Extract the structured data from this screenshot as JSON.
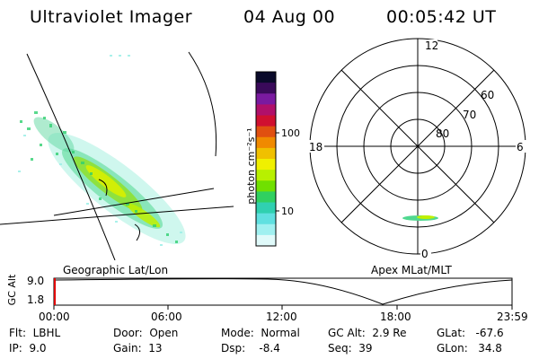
{
  "header": {
    "title": "Ultraviolet Imager",
    "date": "04 Aug 00",
    "time": "00:05:42 UT"
  },
  "left_panel": {
    "caption": "Geographic Lat/Lon"
  },
  "colorbar": {
    "unit_label": "photon cm⁻²s⁻¹",
    "ticks": [
      "100",
      "10"
    ],
    "colors": [
      "#0a0a2a",
      "#3a0a5a",
      "#7a1aa0",
      "#b0106a",
      "#d01030",
      "#e05010",
      "#f08a00",
      "#f0c000",
      "#f0f000",
      "#b8f000",
      "#70e000",
      "#30d060",
      "#30d0b0",
      "#60e0e0",
      "#a0f0f0",
      "#e0fafa"
    ]
  },
  "right_panel": {
    "caption": "Apex MLat/MLT",
    "mlt_labels": {
      "top": "12",
      "left": "18",
      "right": "6",
      "bottom": "0"
    },
    "mlat_labels": [
      "60",
      "70",
      "80"
    ]
  },
  "altitude_plot": {
    "ylabel": "GC Alt",
    "yticks": [
      "9.0",
      "1.8"
    ],
    "xticks": [
      "00:00",
      "06:00",
      "12:00",
      "18:00",
      "23:59"
    ]
  },
  "status": {
    "flt": "Flt:  LBHL",
    "ip": "IP:  9.0",
    "door": "Door:  Open",
    "gain": "Gain:  13",
    "mode": "Mode:  Normal",
    "dsp": "Dsp:    -8.4",
    "gc_alt": "GC Alt:  2.9 Re",
    "seq": "Seq:  39",
    "glat": "GLat:   -67.6",
    "glon": "GLon:   34.8"
  }
}
